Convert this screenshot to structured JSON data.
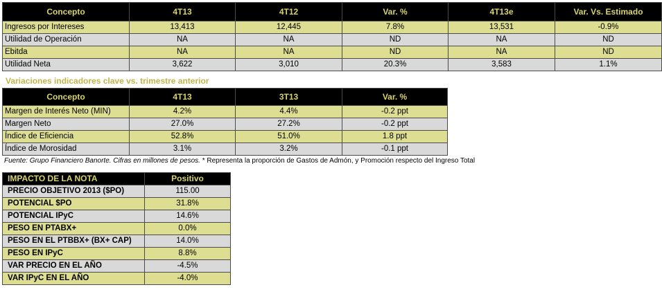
{
  "table1": {
    "headers": [
      "Concepto",
      "4T13",
      "4T12",
      "Var. %",
      "4T13e",
      "Var. Vs. Estimado"
    ],
    "rows": [
      [
        "Ingresos por Intereses",
        "13,413",
        "12,445",
        "7.8%",
        "13,531",
        "-0.9%"
      ],
      [
        "Utilidad de Operación",
        "NA",
        "NA",
        "ND",
        "NA",
        "ND"
      ],
      [
        "Ebitda",
        "NA",
        "NA",
        "ND",
        "NA",
        "ND"
      ],
      [
        "Utilidad Neta",
        "3,622",
        "3,010",
        "20.3%",
        "3,583",
        "1.1%"
      ]
    ]
  },
  "subtitle": "Variaciones indicadores clave vs. trimestre anterior",
  "table2": {
    "headers": [
      "Concepto",
      "4T13",
      "3T13",
      "Var. %"
    ],
    "rows": [
      [
        "Margen de Interés Neto (MIN)",
        "4.2%",
        "4.4%",
        "-0.2 ppt"
      ],
      [
        "Margen Neto",
        "27.0%",
        "27.2%",
        "-0.2 ppt"
      ],
      [
        "Índice de Eficiencia",
        "52.8%",
        "51.0%",
        "1.8 ppt"
      ],
      [
        "Índice de Morosidad",
        "3.1%",
        "3.2%",
        "-0.1 ppt"
      ]
    ]
  },
  "footnote": {
    "source": "Fuente: Grupo Financiero Banorte. Cifras en millones de pesos.",
    "note": " * Representa la proporción de Gastos de Admón, y Promoción respecto del Ingreso Total"
  },
  "table3": {
    "headers": [
      "IMPACTO DE LA NOTA",
      "Positivo"
    ],
    "rows": [
      [
        "PRECIO OBJETIVO 2013 ($PO)",
        "115.00"
      ],
      [
        "POTENCIAL $PO",
        "31.8%"
      ],
      [
        "POTENCIAL IPyC",
        "14.6%"
      ],
      [
        "PESO EN PTABX+",
        "0.0%"
      ],
      [
        "PESO EN EL PTBBX+ (BX+ CAP)",
        "14.0%"
      ],
      [
        "PESO EN IPyC",
        "8.8%"
      ],
      [
        "VAR PRECIO EN EL AÑO",
        "-4.5%"
      ],
      [
        "VAR IPyC EN EL AÑO",
        "-4.0%"
      ]
    ]
  }
}
